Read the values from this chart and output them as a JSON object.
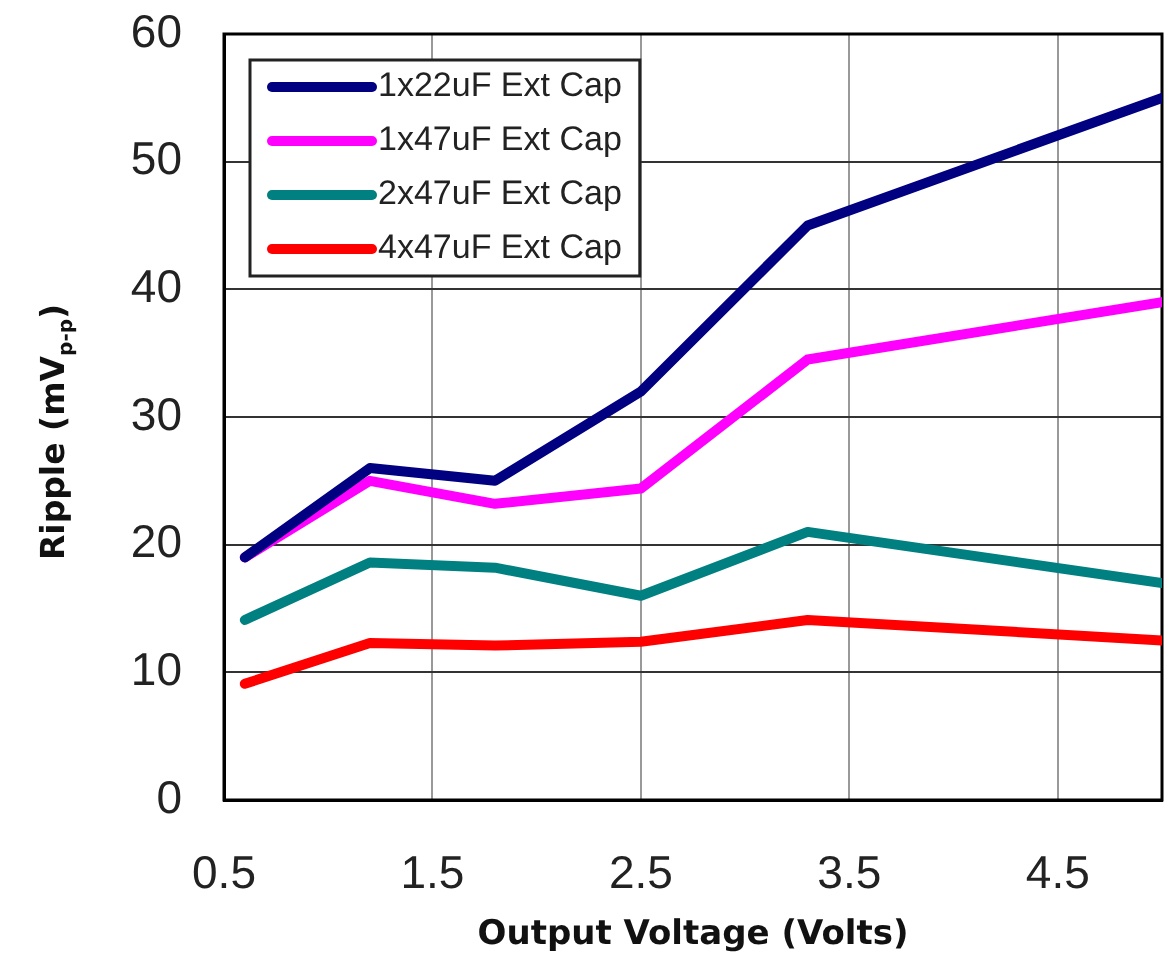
{
  "chart_data": {
    "type": "line",
    "xlabel": "Output Voltage (Volts)",
    "ylabel": "Ripple (mV$_{p-p}$)",
    "x": [
      0.6,
      1.2,
      1.8,
      2.5,
      3.3,
      5.0
    ],
    "xlim": [
      0.5,
      5.0
    ],
    "xticks": [
      0.5,
      1.5,
      2.5,
      3.5,
      4.5
    ],
    "ylim": [
      0,
      60
    ],
    "yticks": [
      0,
      10,
      20,
      30,
      40,
      50,
      60
    ],
    "grid": true,
    "legend": "top left",
    "line_style": "solid",
    "series": [
      {
        "name": "1x22uF Ext Cap",
        "color": "#000080",
        "values": [
          19,
          26,
          25,
          32,
          45,
          55
        ]
      },
      {
        "name": "1x47uF Ext Cap",
        "color": "#ff00ff",
        "values": [
          19,
          25,
          23.2,
          24.4,
          34.5,
          39
        ]
      },
      {
        "name": "2x47uF Ext Cap",
        "color": "#008080",
        "values": [
          14.1,
          18.6,
          18.2,
          16,
          21,
          17
        ]
      },
      {
        "name": "4x47uF Ext Cap",
        "color": "#ff0000",
        "values": [
          9.1,
          12.3,
          12.1,
          12.4,
          14.1,
          12.5
        ]
      }
    ]
  }
}
